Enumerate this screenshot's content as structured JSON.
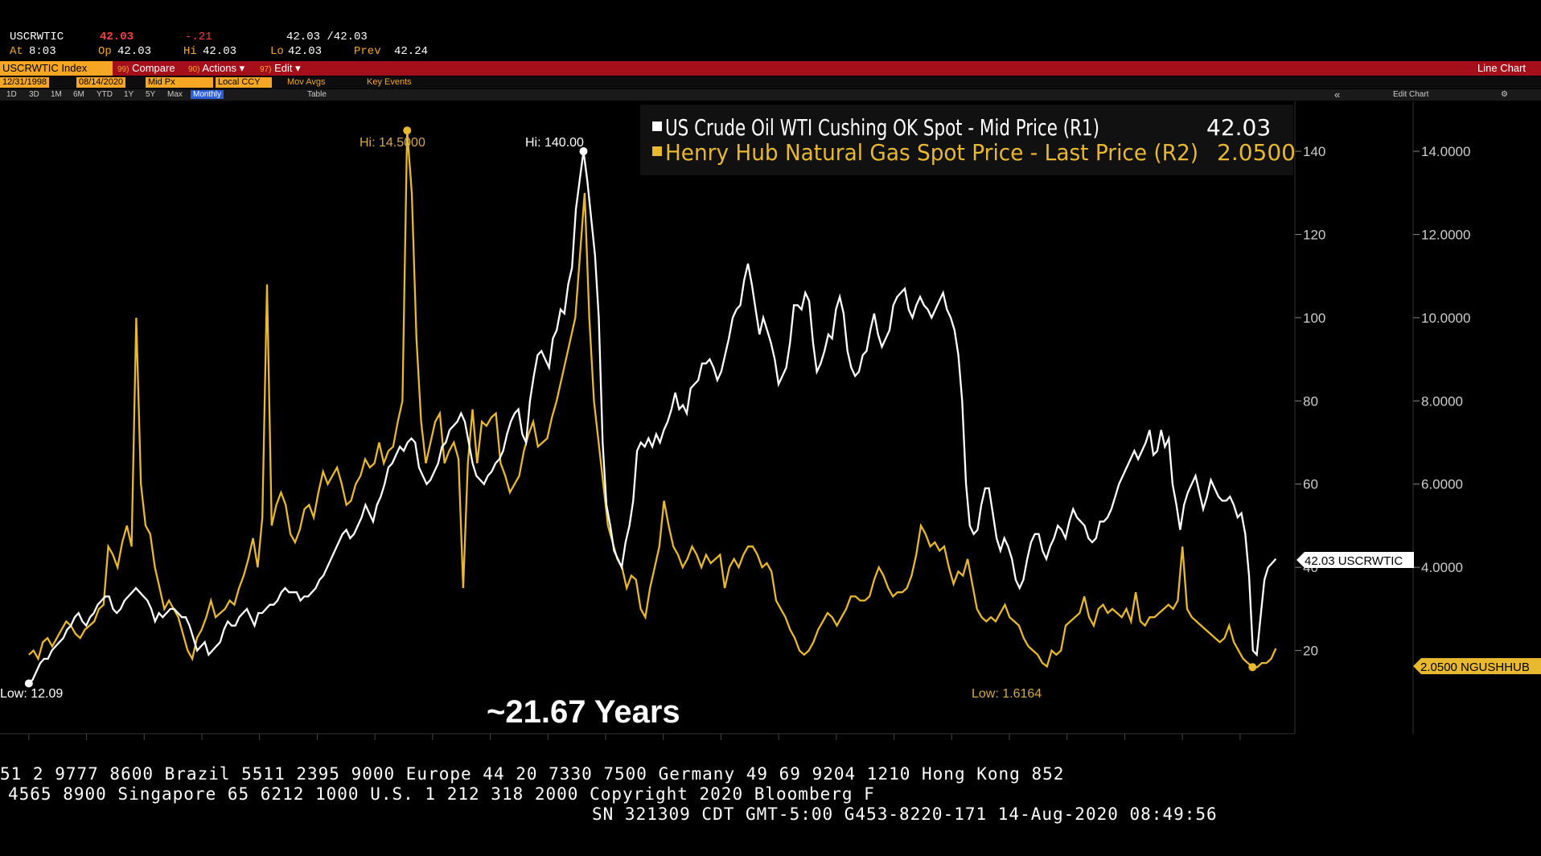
{
  "header": {
    "ticker": "USCRWTIC",
    "last": "42.03",
    "change": "-.21",
    "bid_ask": "42.03 /42.03",
    "at_label": "At",
    "at_time": "8:03",
    "open_label": "Op",
    "open": "42.03",
    "hi_label": "Hi",
    "hi": "42.03",
    "lo_label": "Lo",
    "lo": "42.03",
    "prev_label": "Prev",
    "prev": "42.24"
  },
  "toolbar": {
    "index": "USCRWTIC Index",
    "compare_num": "99)",
    "compare": "Compare",
    "actions_num": "90)",
    "actions": "Actions",
    "edit_num": "97)",
    "edit": "Edit",
    "view": "Line Chart"
  },
  "settings": {
    "start_date": "12/31/1998",
    "end_date": "08/14/2020",
    "price_field": "Mid Px",
    "currency": "Local CCY",
    "mov_avgs": "Mov Avgs",
    "key_events": "Key Events"
  },
  "periods": [
    "1D",
    "3D",
    "1M",
    "6M",
    "YTD",
    "1Y",
    "5Y",
    "Max"
  ],
  "frequency": "Monthly",
  "table_label": "Table",
  "edit_chart": "Edit Chart",
  "ticker_lines": [
    "51 2 9777 8600 Brazil 5511 2395 9000 Europe 44 20 7330 7500 Germany 49 69 9204 1210 Hong Kong 852",
    "4565 8900      Singapore 65 6212 1000      U.S. 1 212 318 2000      Copyright 2020 Bloomberg F",
    "SN 321309 CDT  GMT-5:00 G453-8220-171 14-Aug-2020 08:49:56"
  ],
  "chart_data": {
    "type": "line",
    "x_start": 1999.0,
    "x_end": 2020.62,
    "x_step_months": 1,
    "xlim": [
      1998.5,
      2020.95
    ],
    "x_ticks": [
      "1999",
      "2000",
      "2001",
      "2002",
      "2003",
      "2004",
      "2005",
      "2006",
      "2007",
      "2008",
      "2009",
      "2010",
      "2011",
      "2012",
      "2013",
      "2014",
      "2015",
      "2016",
      "2017",
      "2018",
      "2019",
      "2020"
    ],
    "y1_ticks": [
      "20",
      "40",
      "60",
      "80",
      "100",
      "120",
      "140"
    ],
    "y1lim": [
      0,
      152
    ],
    "y2_ticks": [
      "4.0000",
      "6.0000",
      "8.0000",
      "10.0000",
      "12.0000",
      "14.0000"
    ],
    "y2lim": [
      0,
      15.2
    ],
    "colors": {
      "oil": "#ffffff",
      "gas": "#e8b82e",
      "hi_gas_label": "#d4a84a"
    },
    "series": [
      {
        "name": "US Crude Oil WTI Cushing OK Spot - Mid Price (R1)",
        "legend_value": "42.03",
        "axis": "R1",
        "values": [
          12.09,
          13,
          15,
          17,
          18,
          18,
          20,
          21,
          22,
          23,
          25,
          26,
          28,
          29,
          27,
          26,
          28,
          29,
          31,
          32,
          33,
          33,
          30,
          29,
          30,
          32,
          33,
          34,
          35,
          34,
          33,
          32,
          30,
          27,
          29,
          28,
          29,
          30,
          30,
          29,
          28,
          28,
          26,
          23,
          20,
          21,
          22,
          19,
          20,
          21,
          22,
          25,
          27,
          26,
          26,
          28,
          29,
          30,
          28,
          26,
          29,
          29,
          30,
          31,
          31,
          32,
          34,
          35,
          34,
          34,
          34,
          32,
          33,
          33,
          34,
          35,
          37,
          38,
          40,
          42,
          44,
          46,
          48,
          49,
          47,
          48,
          50,
          52,
          55,
          53,
          51,
          55,
          57,
          60,
          64,
          65,
          67,
          69,
          68,
          70,
          71,
          70,
          64,
          62,
          60,
          61,
          63,
          65,
          69,
          70,
          73,
          74,
          75,
          77,
          75,
          70,
          65,
          62,
          61,
          60,
          62,
          63,
          65,
          66,
          68,
          72,
          75,
          77,
          78,
          72,
          70,
          80,
          86,
          91,
          92,
          90,
          88,
          95,
          97,
          102,
          101,
          108,
          112,
          126,
          133,
          140,
          133,
          124,
          115,
          100,
          70,
          55,
          50,
          44,
          42,
          40,
          46,
          50,
          56,
          68,
          70,
          69,
          71,
          69,
          72,
          70,
          73,
          75,
          78,
          82,
          78,
          79,
          77,
          83,
          84,
          85,
          89,
          89,
          90,
          88,
          85,
          87,
          91,
          95,
          100,
          102,
          103,
          109,
          113,
          108,
          102,
          96,
          100,
          97,
          94,
          90,
          84,
          86,
          88,
          94,
          103,
          103,
          102,
          106,
          104,
          94,
          87,
          89,
          92,
          96,
          95,
          102,
          105,
          101,
          92,
          88,
          86,
          87,
          91,
          92,
          97,
          101,
          96,
          93,
          95,
          97,
          103,
          105,
          106,
          107,
          102,
          100,
          103,
          105,
          103,
          102,
          100,
          102,
          104,
          106,
          102,
          100,
          97,
          91,
          80,
          60,
          50,
          48,
          49,
          55,
          59,
          59,
          53,
          47,
          44,
          47,
          45,
          42,
          37,
          35,
          37,
          42,
          46,
          48,
          48,
          44,
          42,
          45,
          47,
          50,
          49,
          47,
          51,
          54,
          52,
          51,
          50,
          47,
          46,
          47,
          51,
          51,
          52,
          54,
          57,
          60,
          62,
          64,
          66,
          68,
          66,
          68,
          70,
          73,
          67,
          68,
          73,
          69,
          71,
          60,
          55,
          49,
          55,
          58,
          60,
          62,
          58,
          54,
          57,
          61,
          59,
          57,
          56,
          56,
          57,
          55,
          52,
          53,
          48,
          38,
          20,
          19,
          28,
          37,
          40,
          41,
          42.03
        ]
      },
      {
        "name": "Henry Hub Natural Gas Spot Price - Last Price (R2)",
        "legend_value": "2.0500",
        "axis": "R2",
        "values": [
          1.9,
          2.0,
          1.8,
          2.2,
          2.3,
          2.1,
          2.3,
          2.5,
          2.7,
          2.6,
          2.4,
          2.3,
          2.5,
          2.6,
          2.7,
          3.0,
          3.1,
          4.5,
          4.3,
          4.0,
          4.6,
          5.0,
          4.5,
          10.0,
          6.0,
          5.0,
          4.8,
          4.0,
          3.5,
          3.0,
          3.2,
          3.0,
          2.8,
          2.4,
          2.0,
          1.8,
          2.3,
          2.5,
          2.8,
          3.2,
          2.8,
          2.9,
          3.0,
          3.2,
          3.1,
          3.5,
          3.8,
          4.2,
          4.7,
          4.0,
          5.2,
          10.8,
          5.0,
          5.5,
          5.8,
          5.5,
          4.8,
          4.6,
          4.9,
          5.4,
          5.5,
          5.2,
          5.8,
          6.3,
          6.0,
          6.2,
          6.4,
          6.0,
          5.5,
          5.6,
          6.0,
          6.2,
          6.6,
          6.4,
          6.5,
          7.0,
          6.5,
          6.8,
          6.9,
          7.5,
          8.0,
          14.5,
          13.0,
          9.5,
          7.5,
          6.5,
          7.0,
          7.5,
          7.7,
          6.5,
          6.8,
          7.0,
          6.6,
          3.5,
          6.5,
          7.8,
          6.5,
          7.5,
          7.4,
          7.6,
          7.7,
          6.5,
          6.2,
          5.8,
          6.0,
          6.2,
          6.8,
          7.2,
          7.5,
          6.9,
          7.0,
          7.1,
          7.6,
          8.0,
          8.5,
          9.0,
          9.5,
          10.0,
          11.5,
          13.0,
          10.0,
          8.0,
          7.0,
          6.0,
          5.0,
          4.6,
          4.2,
          4.0,
          3.5,
          3.8,
          3.7,
          3.0,
          2.8,
          3.5,
          4.0,
          4.5,
          5.6,
          5.0,
          4.5,
          4.3,
          4.0,
          4.2,
          4.5,
          4.3,
          4.0,
          4.3,
          4.1,
          4.2,
          4.3,
          3.5,
          4.0,
          4.2,
          4.0,
          4.3,
          4.5,
          4.5,
          4.3,
          4.0,
          4.1,
          3.9,
          3.2,
          3.0,
          2.8,
          2.5,
          2.3,
          2.0,
          1.9,
          2.0,
          2.2,
          2.5,
          2.7,
          2.9,
          2.8,
          2.6,
          2.8,
          3.0,
          3.3,
          3.3,
          3.2,
          3.2,
          3.3,
          3.7,
          4.0,
          3.8,
          3.5,
          3.3,
          3.4,
          3.4,
          3.5,
          3.8,
          4.3,
          5.0,
          4.8,
          4.5,
          4.6,
          4.4,
          4.5,
          4.0,
          3.6,
          3.9,
          3.8,
          4.2,
          3.6,
          3.0,
          2.8,
          2.7,
          2.8,
          2.7,
          2.9,
          3.1,
          2.8,
          2.7,
          2.6,
          2.3,
          2.1,
          2.0,
          1.9,
          1.7,
          1.6164,
          2.0,
          1.9,
          2.0,
          2.6,
          2.7,
          2.8,
          2.9,
          3.3,
          2.8,
          2.6,
          3.0,
          3.1,
          2.9,
          3.0,
          2.9,
          2.8,
          3.0,
          2.7,
          3.4,
          2.7,
          2.6,
          2.8,
          2.8,
          2.9,
          3.0,
          3.1,
          3.0,
          3.2,
          4.5,
          3.0,
          2.8,
          2.7,
          2.6,
          2.5,
          2.4,
          2.3,
          2.2,
          2.3,
          2.6,
          2.2,
          2.0,
          1.8,
          1.7,
          1.6,
          1.6,
          1.7,
          1.7,
          1.8,
          2.05
        ]
      }
    ],
    "annotations": {
      "oil_hi": "Hi: 140.00",
      "gas_hi": "Hi: 14.5000",
      "oil_low": "Low: 12.09",
      "gas_low": "Low: 1.6164",
      "duration": "~21.67 Years",
      "oil_last_tag": "42.03 USCRWTIC",
      "gas_last_tag": "2.0500 NGUSHHUB"
    }
  }
}
